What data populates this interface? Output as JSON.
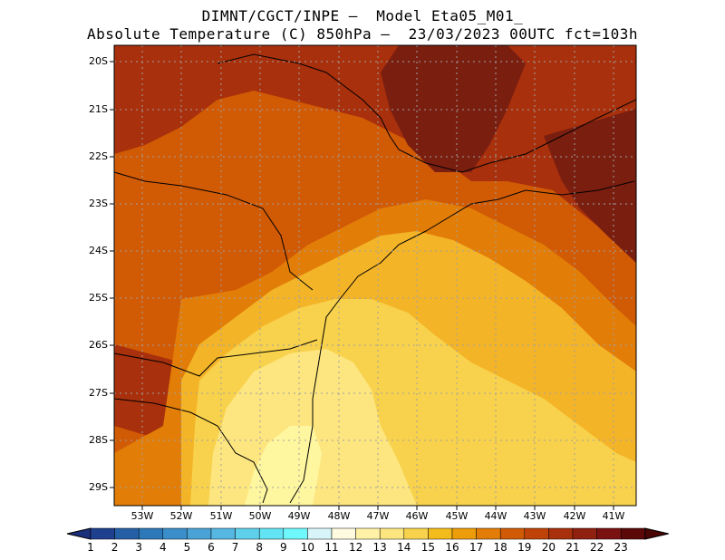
{
  "title_line1": "DIMNT/CGCT/INPE —  Model Eta05_M01_",
  "title_line2": "Absolute Temperature (C) 850hPa —  23/03/2023 00UTC fct=103h",
  "lat_labels": [
    "20S",
    "21S",
    "22S",
    "23S",
    "24S",
    "25S",
    "26S",
    "27S",
    "28S",
    "29S"
  ],
  "lon_labels": [
    "53W",
    "52W",
    "51W",
    "50W",
    "49W",
    "48W",
    "47W",
    "46W",
    "45W",
    "44W",
    "43W",
    "42W",
    "41W"
  ],
  "colorbar": {
    "labels": [
      "1",
      "2",
      "3",
      "4",
      "5",
      "6",
      "7",
      "8",
      "9",
      "10",
      "11",
      "12",
      "13",
      "14",
      "15",
      "16",
      "17",
      "18",
      "19",
      "20",
      "21",
      "22",
      "23"
    ],
    "colors": [
      "#1f3f8f",
      "#2560a6",
      "#2d78b8",
      "#3a8fca",
      "#4aa3d6",
      "#56b8e2",
      "#5fd0ec",
      "#62e4f4",
      "#6ef8fc",
      "#d8f6fa",
      "#fffbe0",
      "#fff2a6",
      "#fde680",
      "#f8d24c",
      "#f4bb1c",
      "#ed9d0a",
      "#e27d08",
      "#d15a05",
      "#bf4309",
      "#a8300c",
      "#90200f",
      "#7a1212",
      "#5c0808"
    ],
    "left_arrow_color": "#1a2f7a",
    "right_arrow_color": "#4a0505"
  },
  "map_field_colors": {
    "coolest": "#fff7a0",
    "cool": "#fde680",
    "mild": "#f8d24c",
    "warm": "#f4b428",
    "hot": "#e27d08",
    "hotter": "#d15a05",
    "hottest": "#a8300c",
    "extreme": "#7a1e10"
  }
}
